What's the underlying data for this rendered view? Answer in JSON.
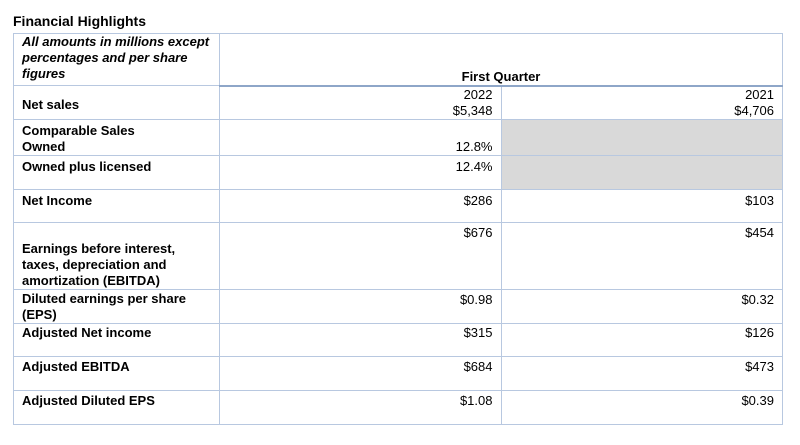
{
  "title": "Financial Highlights",
  "header": {
    "note": "All amounts in millions except percentages and per share figures",
    "period": "First Quarter",
    "year_current": "2022",
    "year_prior": "2021"
  },
  "rows": {
    "net_sales": {
      "label": "Net sales",
      "current": "$5,348",
      "prior": "$4,706"
    },
    "comparable_sales": {
      "label": "Comparable Sales"
    },
    "owned": {
      "label": "Owned",
      "current": "12.8%"
    },
    "owned_plus_licensed": {
      "label": "Owned plus licensed",
      "current": "12.4%"
    },
    "net_income": {
      "label": "Net Income",
      "current": "$286",
      "prior": "$103"
    },
    "ebitda": {
      "label": "Earnings before interest, taxes, depreciation and amortization (EBITDA)",
      "current": "$676",
      "prior": "$454"
    },
    "diluted_eps": {
      "label": "Diluted earnings per share (EPS)",
      "current": "$0.98",
      "prior": "$0.32"
    },
    "adj_net_income": {
      "label": "Adjusted Net income",
      "current": "$315",
      "prior": "$126"
    },
    "adj_ebitda": {
      "label": "Adjusted EBITDA",
      "current": "$684",
      "prior": "$473"
    },
    "adj_diluted_eps": {
      "label": "Adjusted Diluted EPS",
      "current": "$1.08",
      "prior": "$0.39"
    }
  }
}
